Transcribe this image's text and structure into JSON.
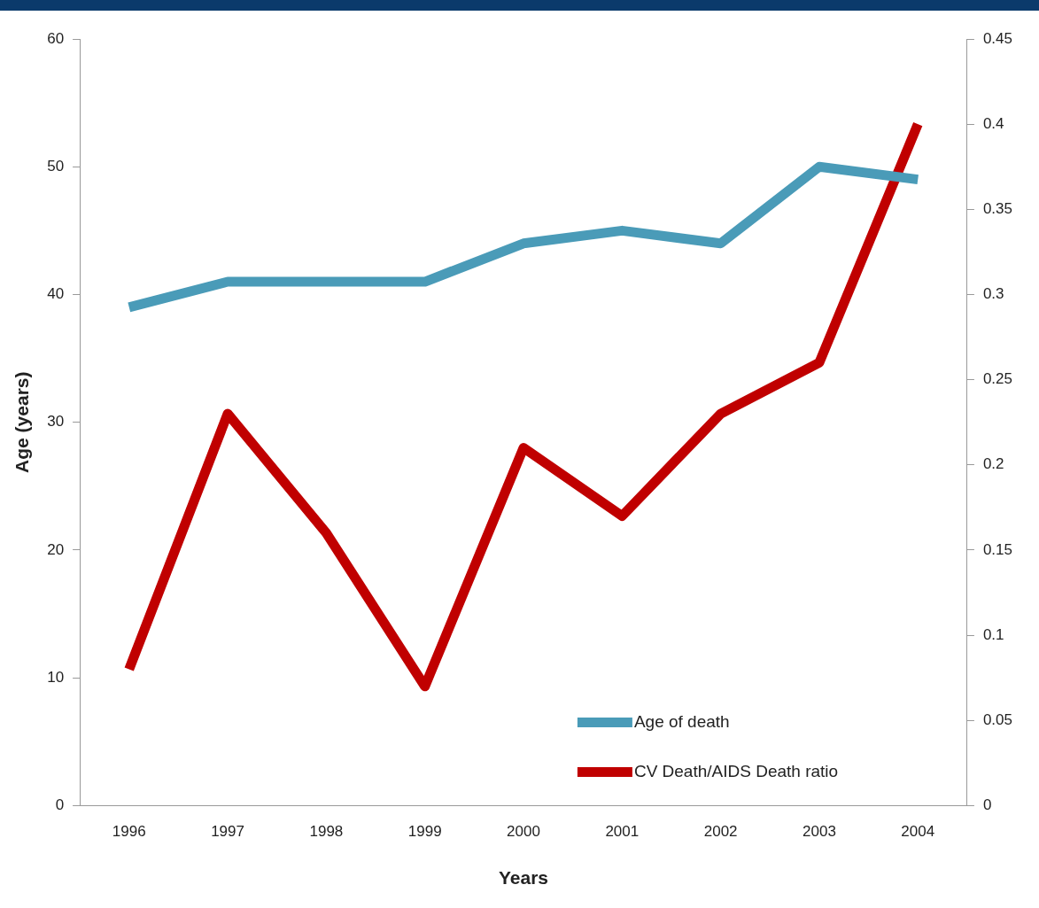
{
  "chart_data": {
    "type": "line",
    "xlabel": "Years",
    "ylabel": "Age (years)",
    "categories": [
      "1996",
      "1997",
      "1998",
      "1999",
      "2000",
      "2001",
      "2002",
      "2003",
      "2004"
    ],
    "series": [
      {
        "name": "Age of death",
        "color": "#4a9bb8",
        "values": [
          39,
          41,
          41,
          41,
          44,
          45,
          44,
          50,
          49
        ]
      },
      {
        "name": "CV Death/AIDS Death ratio",
        "color": "#c00000",
        "axis": "y2",
        "values": [
          0.08,
          0.23,
          0.16,
          0.07,
          0.21,
          0.17,
          0.23,
          0.26,
          0.4
        ]
      }
    ],
    "ylim": [
      0,
      60
    ],
    "yticks": [
      0,
      10,
      20,
      30,
      40,
      50,
      60
    ],
    "y2lim": [
      0,
      0.45
    ],
    "y2ticks": [
      0,
      0.05,
      0.1,
      0.15,
      0.2,
      0.25,
      0.3,
      0.35,
      0.4,
      0.45
    ],
    "grid": false,
    "legend": "bottom right",
    "marker": "none",
    "line_style": "solid"
  }
}
